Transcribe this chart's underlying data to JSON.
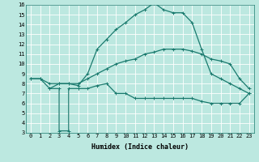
{
  "title": "",
  "xlabel": "Humidex (Indice chaleur)",
  "xlim": [
    -0.5,
    23.5
  ],
  "ylim": [
    3,
    16
  ],
  "xticks": [
    0,
    1,
    2,
    3,
    4,
    5,
    6,
    7,
    8,
    9,
    10,
    11,
    12,
    13,
    14,
    15,
    16,
    17,
    18,
    19,
    20,
    21,
    22,
    23
  ],
  "yticks": [
    3,
    4,
    5,
    6,
    7,
    8,
    9,
    10,
    11,
    12,
    13,
    14,
    15,
    16
  ],
  "line_color": "#1a7a6e",
  "bg_color": "#bce8e0",
  "grid_color": "#ffffff",
  "line1_x": [
    0,
    1,
    2,
    3,
    4,
    5,
    6,
    7,
    8,
    9,
    10,
    11,
    12,
    13,
    14,
    15,
    16,
    17,
    18,
    19,
    20,
    21,
    22,
    23
  ],
  "line1_y": [
    8.5,
    8.5,
    8.0,
    8.0,
    8.0,
    8.0,
    8.5,
    9.0,
    9.5,
    10.0,
    10.3,
    10.5,
    11.0,
    11.2,
    11.5,
    11.5,
    11.5,
    11.3,
    11.0,
    10.5,
    10.3,
    10.0,
    8.5,
    7.5
  ],
  "line2_x": [
    0,
    1,
    2,
    3,
    4,
    5,
    6,
    7,
    8,
    9,
    10,
    11,
    12,
    13,
    14,
    15,
    16,
    17,
    18,
    19,
    20,
    21,
    22,
    23
  ],
  "line2_y": [
    8.5,
    8.5,
    7.5,
    8.0,
    8.0,
    7.8,
    9.0,
    11.5,
    12.5,
    13.5,
    14.2,
    15.0,
    15.5,
    16.2,
    15.5,
    15.2,
    15.2,
    14.2,
    11.5,
    9.0,
    8.5,
    8.0,
    7.5,
    7.0
  ],
  "line3_x": [
    2,
    3,
    3,
    4,
    4,
    5,
    5,
    6,
    7,
    8,
    9,
    10,
    11,
    12,
    13,
    14,
    15,
    16,
    17,
    18,
    19,
    20,
    21,
    22,
    23
  ],
  "line3_y": [
    7.5,
    7.5,
    3.2,
    3.2,
    7.5,
    7.5,
    7.5,
    7.5,
    7.8,
    8.0,
    7.0,
    7.0,
    6.5,
    6.5,
    6.5,
    6.5,
    6.5,
    6.5,
    6.5,
    6.2,
    6.0,
    6.0,
    6.0,
    6.0,
    7.0
  ],
  "marker": "+",
  "markersize": 3,
  "linewidth": 0.9,
  "tick_fontsize": 5,
  "xlabel_fontsize": 6
}
